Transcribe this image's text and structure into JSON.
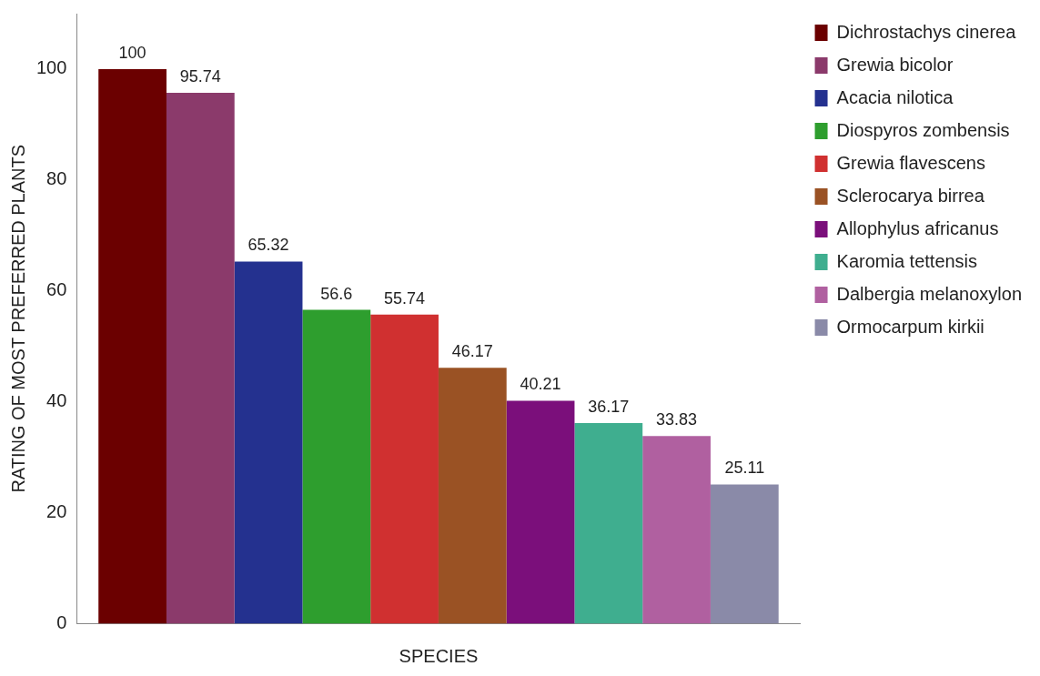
{
  "chart_data": {
    "type": "bar",
    "xlabel": "SPECIES",
    "ylabel": "RATING OF MOST PREFERRED PLANTS",
    "categories": [
      null
    ],
    "ylim": [
      0,
      110
    ],
    "yticks": [
      0,
      20,
      40,
      60,
      80,
      100
    ],
    "grid": false,
    "legend": "right",
    "data_labels": true,
    "series": [
      {
        "name": "Dichrostachys cinerea",
        "color": "#6b0000",
        "values": [
          100
        ]
      },
      {
        "name": "Grewia bicolor",
        "color": "#8b3a6b",
        "values": [
          95.74
        ]
      },
      {
        "name": "Acacia nilotica",
        "color": "#24318f",
        "values": [
          65.32
        ]
      },
      {
        "name": "Diospyros zombensis",
        "color": "#2e9e2e",
        "values": [
          56.6
        ]
      },
      {
        "name": "Grewia flavescens",
        "color": "#d03030",
        "values": [
          55.74
        ]
      },
      {
        "name": "Sclerocarya birrea",
        "color": "#9a5224",
        "values": [
          46.17
        ]
      },
      {
        "name": "Allophylus africanus",
        "color": "#7b0f7b",
        "values": [
          40.21
        ]
      },
      {
        "name": "Karomia tettensis",
        "color": "#3fae8f",
        "values": [
          36.17
        ]
      },
      {
        "name": "Dalbergia melanoxylon",
        "color": "#b060a0",
        "values": [
          33.83
        ]
      },
      {
        "name": "Ormocarpum kirkii",
        "color": "#8a8aa8",
        "values": [
          25.11
        ]
      }
    ]
  }
}
